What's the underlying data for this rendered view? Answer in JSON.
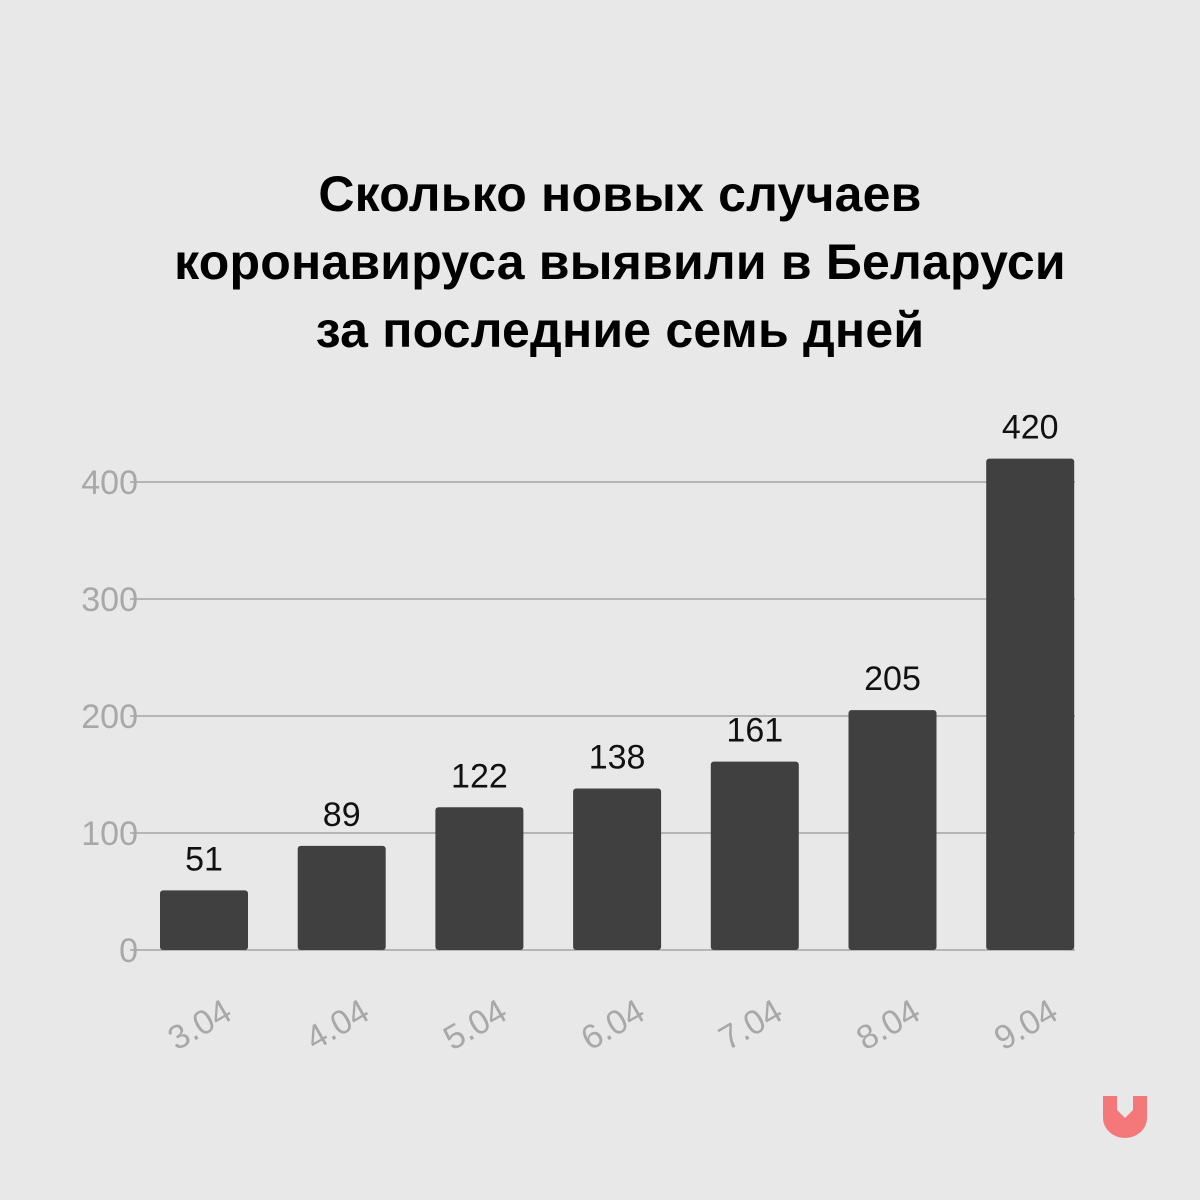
{
  "title_lines": [
    "Сколько новых случаев",
    "коронавируса выявили в Беларуси",
    "за последние семь дней"
  ],
  "colors": {
    "background": "#e8e8e8",
    "bar": "#404040",
    "grid": "#b5b5b5",
    "tick_label": "#a8a8a8",
    "value_label": "#111111",
    "logo": "#f4777a"
  },
  "logo_icon": "arrow-down-shield-icon",
  "chart_data": {
    "type": "bar",
    "title": "Сколько новых случаев коронавируса выявили в Беларуси за последние семь дней",
    "categories": [
      "3.04",
      "4.04",
      "5.04",
      "6.04",
      "7.04",
      "8.04",
      "9.04"
    ],
    "values": [
      51,
      89,
      122,
      138,
      161,
      205,
      420
    ],
    "value_labels": [
      "51",
      "89",
      "122",
      "138",
      "161",
      "205",
      "420"
    ],
    "y_ticks": [
      0,
      100,
      200,
      300,
      400
    ],
    "y_tick_labels": [
      "0",
      "100",
      "200",
      "300",
      "400"
    ],
    "ylim": [
      0,
      400
    ],
    "grid": true,
    "xlabel": "",
    "ylabel": "",
    "legend": "none"
  }
}
